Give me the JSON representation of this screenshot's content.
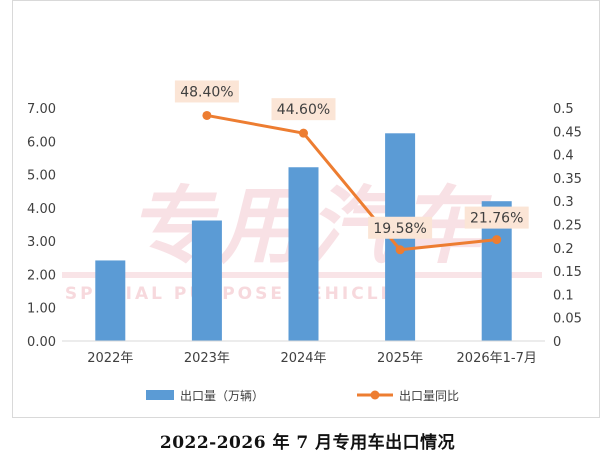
{
  "caption": "2022-2026 年 7 月专用车出口情况",
  "watermark": {
    "main": "专用汽车",
    "sub": "SPECIAL PURPOSE VEHICLE"
  },
  "chart_data": {
    "type": "bar",
    "categories": [
      "2022年",
      "2023年",
      "2024年",
      "2025年",
      "2026年1-7月"
    ],
    "series": [
      {
        "name": "出口量（万辆）",
        "type": "bar",
        "axis": "left",
        "values": [
          2.42,
          3.62,
          5.22,
          6.24,
          4.2
        ],
        "color": "#5B9BD5"
      },
      {
        "name": "出口量同比",
        "type": "line",
        "axis": "right",
        "values": [
          null,
          0.484,
          0.446,
          0.1958,
          0.2176
        ],
        "labels": [
          "",
          "48.40%",
          "44.60%",
          "19.58%",
          "21.76%"
        ],
        "color": "#ED7D31"
      }
    ],
    "y_left": {
      "ylim": [
        0,
        7
      ],
      "ticks": [
        "0.00",
        "1.00",
        "2.00",
        "3.00",
        "4.00",
        "5.00",
        "6.00",
        "7.00"
      ]
    },
    "y_right": {
      "ylim": [
        0,
        0.5
      ],
      "ticks": [
        "0",
        "0.05",
        "0.1",
        "0.15",
        "0.2",
        "0.25",
        "0.3",
        "0.35",
        "0.4",
        "0.45",
        "0.5"
      ]
    },
    "legend_position": "bottom",
    "label_bg_color": "#FBE5D6"
  }
}
